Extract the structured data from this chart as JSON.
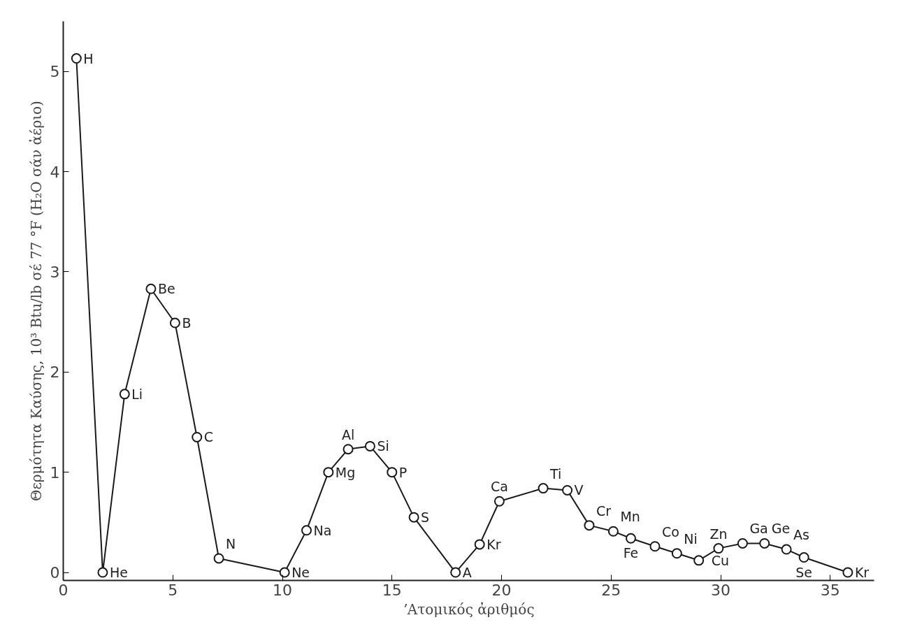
{
  "chart_data": {
    "type": "line",
    "xlabel": "ʼΑτομικός ἀριθμός",
    "ylabel": "Θερμότητα Καύσης, 10³ Btu/lb σέ 77 °F (H₂O σάν ἀέριο)",
    "x": [
      0.6,
      1.8,
      2.8,
      4.0,
      5.1,
      6.1,
      7.1,
      10.1,
      11.1,
      12.1,
      13.0,
      14.0,
      15.0,
      16.0,
      17.9,
      19.0,
      19.9,
      21.9,
      23.0,
      24.0,
      25.1,
      25.9,
      27.0,
      28.0,
      29.0,
      29.9,
      31.0,
      32.0,
      33.0,
      33.8,
      35.8
    ],
    "series": [
      {
        "color": "#1a1a1a",
        "values": [
          5.13,
          0,
          1.78,
          2.83,
          2.49,
          1.35,
          0.14,
          0,
          0.42,
          1.0,
          1.23,
          1.26,
          1.0,
          0.55,
          0,
          0.28,
          0.71,
          0.84,
          0.82,
          0.47,
          0.41,
          0.34,
          0.26,
          0.19,
          0.12,
          0.24,
          0.29,
          0.29,
          0.23,
          0.15,
          0
        ]
      }
    ],
    "annotations": [
      {
        "text": "H",
        "x": 0.6,
        "y": 5.13
      },
      {
        "text": "He",
        "x": 1.8,
        "y": 0
      },
      {
        "text": "Li",
        "x": 2.8,
        "y": 1.78
      },
      {
        "text": "Be",
        "x": 4.0,
        "y": 2.83
      },
      {
        "text": "B",
        "x": 5.1,
        "y": 2.49
      },
      {
        "text": "C",
        "x": 6.1,
        "y": 1.35
      },
      {
        "text": "N",
        "x": 7.1,
        "y": 0.14
      },
      {
        "text": "Ne",
        "x": 10.1,
        "y": 0
      },
      {
        "text": "Na",
        "x": 11.1,
        "y": 0.42
      },
      {
        "text": "Mg",
        "x": 12.1,
        "y": 1.0
      },
      {
        "text": "Al",
        "x": 13.0,
        "y": 1.23
      },
      {
        "text": "Si",
        "x": 14.0,
        "y": 1.26
      },
      {
        "text": "P",
        "x": 15.0,
        "y": 1.0
      },
      {
        "text": "S",
        "x": 16.0,
        "y": 0.55
      },
      {
        "text": "A",
        "x": 17.9,
        "y": 0
      },
      {
        "text": "Kr",
        "x": 19.0,
        "y": 0.28
      },
      {
        "text": "Ca",
        "x": 19.9,
        "y": 0.71
      },
      {
        "text": "Ti",
        "x": 21.9,
        "y": 0.84
      },
      {
        "text": "V",
        "x": 23.0,
        "y": 0.82
      },
      {
        "text": "Cr",
        "x": 24.0,
        "y": 0.47
      },
      {
        "text": "Mn",
        "x": 25.1,
        "y": 0.41
      },
      {
        "text": "Fe",
        "x": 25.9,
        "y": 0.34
      },
      {
        "text": "Co",
        "x": 27.0,
        "y": 0.26
      },
      {
        "text": "Ni",
        "x": 28.0,
        "y": 0.19
      },
      {
        "text": "Cu",
        "x": 29.0,
        "y": 0.12
      },
      {
        "text": "Zn",
        "x": 29.9,
        "y": 0.24
      },
      {
        "text": "Ga",
        "x": 31.0,
        "y": 0.29
      },
      {
        "text": "Ge",
        "x": 32.0,
        "y": 0.29
      },
      {
        "text": "As",
        "x": 33.0,
        "y": 0.23
      },
      {
        "text": "Se",
        "x": 33.8,
        "y": 0.15
      },
      {
        "text": "Kr",
        "x": 35.8,
        "y": 0
      }
    ],
    "xlim": [
      0,
      37
    ],
    "ylim": [
      -0.08,
      5.5
    ],
    "xticks": [
      0,
      5,
      10,
      15,
      20,
      25,
      30,
      35
    ],
    "yticks": [
      0,
      1,
      2,
      3,
      4,
      5
    ],
    "marker": "circle",
    "grid": false
  }
}
